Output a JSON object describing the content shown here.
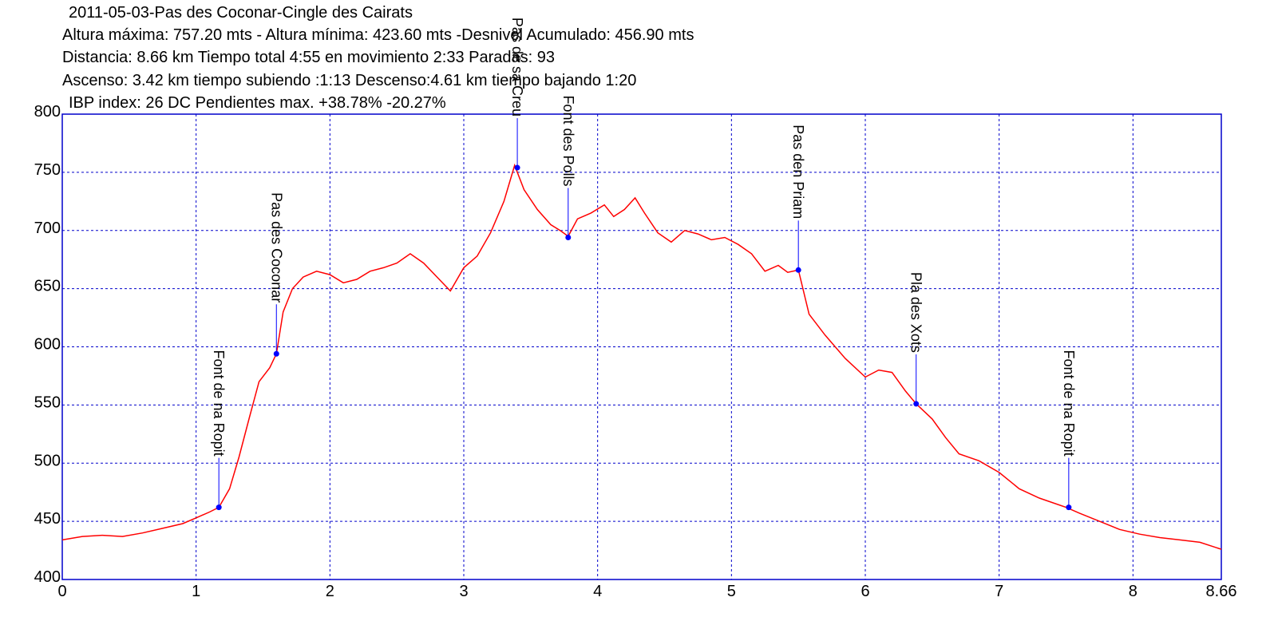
{
  "header": {
    "line1": "2011-05-03-Pas des Coconar-Cingle des Cairats",
    "line2": "Altura máxima: 757.20 mts - Altura mínima: 423.60 mts -Desnivel Acumulado: 456.90 mts",
    "line3": "Distancia: 8.66 km  Tiempo total 4:55  en movimiento 2:33 Paradas: 93",
    "line4": "Ascenso: 3.42 km  tiempo subiendo :1:13  Descenso:4.61 km tiempo bajando 1:20",
    "line5": "IBP index: 26 DC Pendientes max. +38.78%  -20.27%"
  },
  "chart_data": {
    "type": "line",
    "xlim": [
      0,
      8.66
    ],
    "ylim": [
      400,
      800
    ],
    "x_ticks": [
      "0",
      "1",
      "2",
      "3",
      "4",
      "5",
      "6",
      "7",
      "8",
      "8.66"
    ],
    "y_ticks": [
      "800",
      "750",
      "700",
      "650",
      "600",
      "550",
      "500",
      "450",
      "400"
    ],
    "grid": true,
    "colors": {
      "profile": "#ff0000",
      "frame": "#0000cc",
      "grid": "#0000cc",
      "marker": "#0000ff"
    },
    "series": [
      {
        "x": [
          0,
          0.15,
          0.3,
          0.45,
          0.6,
          0.75,
          0.9,
          1.0,
          1.1,
          1.17,
          1.25,
          1.32,
          1.4,
          1.47,
          1.55,
          1.6,
          1.65,
          1.72,
          1.8,
          1.9,
          2.0,
          2.1,
          2.2,
          2.3,
          2.4,
          2.5,
          2.6,
          2.7,
          2.8,
          2.9,
          3.0,
          3.1,
          3.2,
          3.3,
          3.38,
          3.45,
          3.55,
          3.65,
          3.72,
          3.78,
          3.85,
          3.95,
          4.05,
          4.12,
          4.2,
          4.28,
          4.35,
          4.45,
          4.55,
          4.65,
          4.75,
          4.85,
          4.95,
          5.05,
          5.15,
          5.25,
          5.35,
          5.42,
          5.5,
          5.58,
          5.7,
          5.85,
          6.0,
          6.1,
          6.2,
          6.3,
          6.38,
          6.5,
          6.6,
          6.7,
          6.85,
          7.0,
          7.15,
          7.3,
          7.5,
          7.6,
          7.75,
          7.9,
          8.05,
          8.2,
          8.35,
          8.5,
          8.66
        ],
        "y": [
          434,
          437,
          438,
          437,
          440,
          444,
          448,
          453,
          458,
          462,
          478,
          505,
          540,
          570,
          582,
          594,
          630,
          650,
          660,
          665,
          662,
          655,
          658,
          665,
          668,
          672,
          680,
          672,
          660,
          648,
          668,
          678,
          698,
          725,
          756,
          735,
          718,
          705,
          700,
          695,
          710,
          715,
          722,
          712,
          718,
          728,
          715,
          698,
          690,
          700,
          697,
          692,
          694,
          688,
          680,
          665,
          670,
          664,
          666,
          628,
          610,
          590,
          574,
          580,
          578,
          562,
          551,
          538,
          522,
          508,
          502,
          492,
          478,
          470,
          462,
          457,
          450,
          443,
          439,
          436,
          434,
          432,
          426
        ]
      }
    ],
    "waypoints": [
      {
        "name": "Font de na Ropit",
        "x": 1.17,
        "y": 462
      },
      {
        "name": "Pas des Coconar",
        "x": 1.6,
        "y": 594
      },
      {
        "name": "Pas de sa Creu",
        "x": 3.4,
        "y": 754
      },
      {
        "name": "Font des Polls",
        "x": 3.78,
        "y": 694
      },
      {
        "name": "Pas den Priam",
        "x": 5.5,
        "y": 666
      },
      {
        "name": "Pla des Xots",
        "x": 6.38,
        "y": 551
      },
      {
        "name": "Font de na Ropit",
        "x": 7.52,
        "y": 462
      }
    ]
  }
}
